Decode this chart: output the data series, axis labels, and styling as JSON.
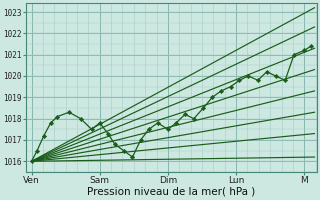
{
  "background_color": "#cce8e0",
  "grid_color_major": "#88b8b0",
  "grid_color_minor": "#a8ccc8",
  "line_color": "#1a5c1a",
  "xlabel": "Pression niveau de la mer( hPa )",
  "ylim": [
    1015.5,
    1023.4
  ],
  "yticks": [
    1016,
    1017,
    1018,
    1019,
    1020,
    1021,
    1022,
    1023
  ],
  "xtick_labels": [
    "Ven",
    "Sam",
    "Dim",
    "Lun",
    "M"
  ],
  "xtick_positions": [
    0,
    1,
    2,
    3,
    4
  ],
  "xlim": [
    -0.08,
    4.18
  ],
  "figsize": [
    3.2,
    2.0
  ],
  "dpi": 100,
  "lines": [
    {
      "x": [
        0,
        4.15
      ],
      "y": [
        1016.0,
        1023.2
      ],
      "has_markers": false
    },
    {
      "x": [
        0,
        4.15
      ],
      "y": [
        1016.0,
        1022.3
      ],
      "has_markers": false
    },
    {
      "x": [
        0,
        4.15
      ],
      "y": [
        1016.0,
        1021.3
      ],
      "has_markers": false
    },
    {
      "x": [
        0,
        4.15
      ],
      "y": [
        1016.0,
        1020.3
      ],
      "has_markers": false
    },
    {
      "x": [
        0,
        4.15
      ],
      "y": [
        1016.0,
        1019.3
      ],
      "has_markers": false
    },
    {
      "x": [
        0,
        4.15
      ],
      "y": [
        1016.0,
        1018.3
      ],
      "has_markers": false
    },
    {
      "x": [
        0,
        4.15
      ],
      "y": [
        1016.0,
        1017.3
      ],
      "has_markers": false
    },
    {
      "x": [
        0,
        4.15
      ],
      "y": [
        1016.0,
        1016.2
      ],
      "has_markers": false
    },
    {
      "x": [
        0,
        0.08,
        0.18,
        0.28,
        0.38,
        0.55,
        0.72,
        0.88,
        1.0,
        1.12,
        1.22,
        1.35,
        1.48,
        1.6,
        1.72,
        1.85,
        2.0,
        2.12,
        2.25,
        2.38,
        2.52,
        2.65,
        2.78,
        2.92,
        3.05,
        3.18,
        3.32,
        3.45,
        3.58,
        3.72,
        3.85,
        4.0,
        4.1
      ],
      "y": [
        1016.0,
        1016.5,
        1017.2,
        1017.8,
        1018.1,
        1018.3,
        1018.0,
        1017.5,
        1017.8,
        1017.3,
        1016.8,
        1016.5,
        1016.2,
        1017.0,
        1017.5,
        1017.8,
        1017.5,
        1017.8,
        1018.2,
        1018.0,
        1018.5,
        1019.0,
        1019.3,
        1019.5,
        1019.8,
        1020.0,
        1019.8,
        1020.2,
        1020.0,
        1019.8,
        1021.0,
        1021.2,
        1021.4
      ],
      "has_markers": true
    }
  ]
}
